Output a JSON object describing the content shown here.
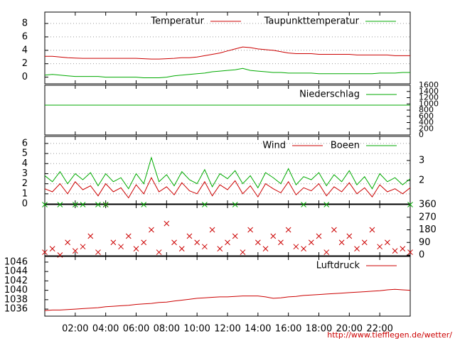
{
  "footer": "http://www.tiefflegen.de/wetter/",
  "chart_data": [
    {
      "type": "line",
      "yaxis": "left",
      "grid": true,
      "x": [
        0,
        0.5,
        1,
        1.5,
        2,
        2.5,
        3,
        3.5,
        4,
        4.5,
        5,
        5.5,
        6,
        6.5,
        7,
        7.5,
        8,
        8.5,
        9,
        9.5,
        10,
        10.5,
        11,
        11.5,
        12,
        12.5,
        13,
        13.5,
        14,
        14.5,
        15,
        15.5,
        16,
        16.5,
        17,
        17.5,
        18,
        18.5,
        19,
        19.5,
        20,
        20.5,
        21,
        21.5,
        22,
        22.5,
        23,
        23.5,
        24
      ],
      "xlim": [
        0,
        24
      ],
      "ylim": [
        -1,
        9.7
      ],
      "yticks": [
        0,
        2,
        4,
        6,
        8
      ],
      "series": [
        {
          "name": "Temperatur",
          "color": "#cc0000",
          "values": [
            3.1,
            3.1,
            3.0,
            2.9,
            2.85,
            2.8,
            2.8,
            2.8,
            2.8,
            2.8,
            2.8,
            2.8,
            2.8,
            2.75,
            2.7,
            2.7,
            2.75,
            2.8,
            2.9,
            2.9,
            3.0,
            3.2,
            3.4,
            3.6,
            3.9,
            4.2,
            4.5,
            4.4,
            4.2,
            4.1,
            4.0,
            3.8,
            3.6,
            3.5,
            3.5,
            3.5,
            3.4,
            3.4,
            3.4,
            3.4,
            3.4,
            3.3,
            3.3,
            3.3,
            3.3,
            3.3,
            3.2,
            3.2,
            3.2
          ]
        },
        {
          "name": "Taupunkttemperatur",
          "color": "#00aa00",
          "values": [
            0.3,
            0.4,
            0.3,
            0.2,
            0.1,
            0.1,
            0.1,
            0.1,
            0.0,
            0.0,
            0.0,
            0.0,
            0.0,
            -0.1,
            -0.1,
            -0.1,
            0.0,
            0.2,
            0.3,
            0.4,
            0.5,
            0.6,
            0.8,
            0.9,
            1.0,
            1.1,
            1.3,
            1.0,
            0.9,
            0.8,
            0.7,
            0.7,
            0.6,
            0.6,
            0.6,
            0.6,
            0.5,
            0.5,
            0.5,
            0.5,
            0.5,
            0.5,
            0.5,
            0.5,
            0.6,
            0.6,
            0.6,
            0.7,
            0.7
          ]
        }
      ]
    },
    {
      "type": "line",
      "yaxis": "right",
      "grid": false,
      "x": [
        0,
        24
      ],
      "xlim": [
        0,
        24
      ],
      "ylim": [
        0,
        1600
      ],
      "yticks": [
        0,
        200,
        400,
        600,
        800,
        1000,
        1200,
        1400,
        1600
      ],
      "series": [
        {
          "name": "Niederschlag",
          "color": "#00aa00",
          "values": [
            960,
            960
          ]
        }
      ]
    },
    {
      "type": "line",
      "yaxis": "left",
      "grid": true,
      "x": [
        0,
        0.5,
        1,
        1.5,
        2,
        2.5,
        3,
        3.5,
        4,
        4.5,
        5,
        5.5,
        6,
        6.5,
        7,
        7.5,
        8,
        8.5,
        9,
        9.5,
        10,
        10.5,
        11,
        11.5,
        12,
        12.5,
        13,
        13.5,
        14,
        14.5,
        15,
        15.5,
        16,
        16.5,
        17,
        17.5,
        18,
        18.5,
        19,
        19.5,
        20,
        20.5,
        21,
        21.5,
        22,
        22.5,
        23,
        23.5,
        24
      ],
      "xlim": [
        0,
        24
      ],
      "ylim": [
        0,
        6.7
      ],
      "yticks": [
        0,
        1,
        2,
        3,
        4,
        5,
        6
      ],
      "y2lim": [
        0.82,
        4.21
      ],
      "y2ticks": [
        2,
        3
      ],
      "series": [
        {
          "name": "Wind",
          "color": "#cc0000",
          "values": [
            1.5,
            1.2,
            2.0,
            1.0,
            2.2,
            1.4,
            1.8,
            0.8,
            2.0,
            1.2,
            1.6,
            0.6,
            1.9,
            1.0,
            2.6,
            1.2,
            1.7,
            0.9,
            2.1,
            1.3,
            1.0,
            2.2,
            0.8,
            1.9,
            1.4,
            2.3,
            1.0,
            1.8,
            0.7,
            2.0,
            1.5,
            1.1,
            2.2,
            0.9,
            1.6,
            1.3,
            2.0,
            0.8,
            1.7,
            1.2,
            2.1,
            1.0,
            1.6,
            0.7,
            1.9,
            1.2,
            1.5,
            1.0,
            1.6
          ]
        },
        {
          "name": "Boeen",
          "color": "#00aa00",
          "values": [
            2.8,
            2.2,
            3.2,
            2.0,
            3.0,
            2.4,
            3.1,
            1.8,
            3.0,
            2.2,
            2.6,
            1.5,
            3.0,
            2.0,
            4.6,
            2.2,
            2.9,
            1.8,
            3.2,
            2.4,
            2.0,
            3.4,
            1.7,
            3.0,
            2.5,
            3.3,
            2.0,
            2.8,
            1.6,
            3.1,
            2.6,
            2.0,
            3.5,
            1.9,
            2.7,
            2.4,
            3.1,
            1.8,
            2.9,
            2.2,
            3.3,
            1.9,
            2.7,
            1.5,
            3.0,
            2.2,
            2.6,
            1.9,
            2.5
          ]
        }
      ]
    },
    {
      "type": "scatter",
      "yaxis": "right",
      "grid": false,
      "x": [
        0,
        0.5,
        1,
        1.5,
        2,
        2.5,
        3,
        3.5,
        4,
        4.5,
        5,
        5.5,
        6,
        6.5,
        7,
        7.5,
        8,
        8.5,
        9,
        9.5,
        10,
        10.5,
        11,
        11.5,
        12,
        12.5,
        13,
        13.5,
        14,
        14.5,
        15,
        15.5,
        16,
        16.5,
        17,
        17.5,
        18,
        18.5,
        19,
        19.5,
        20,
        20.5,
        21,
        21.5,
        22,
        22.5,
        23,
        23.5,
        24
      ],
      "xlim": [
        0,
        24
      ],
      "ylim": [
        -5,
        360
      ],
      "yticks": [
        0,
        90,
        180,
        270,
        360
      ],
      "series": [
        {
          "color": "#cc0000",
          "values": [
            20,
            45,
            0,
            90,
            30,
            60,
            135,
            20,
            360,
            90,
            60,
            135,
            45,
            90,
            180,
            20,
            225,
            90,
            45,
            135,
            90,
            60,
            180,
            45,
            90,
            135,
            20,
            180,
            90,
            45,
            135,
            90,
            180,
            60,
            45,
            90,
            135,
            20,
            180,
            90,
            135,
            45,
            90,
            180,
            60,
            90,
            30,
            45,
            20
          ]
        },
        {
          "color": "#00aa00",
          "values": [
            360,
            null,
            360,
            null,
            360,
            360,
            null,
            360,
            360,
            null,
            null,
            null,
            null,
            360,
            null,
            null,
            null,
            null,
            null,
            null,
            null,
            360,
            null,
            null,
            null,
            360,
            null,
            null,
            null,
            null,
            null,
            null,
            null,
            null,
            360,
            null,
            null,
            360,
            null,
            null,
            null,
            null,
            null,
            null,
            null,
            null,
            null,
            null,
            360
          ]
        }
      ]
    },
    {
      "type": "line",
      "yaxis": "left",
      "grid": false,
      "x": [
        0,
        0.5,
        1,
        1.5,
        2,
        2.5,
        3,
        3.5,
        4,
        4.5,
        5,
        5.5,
        6,
        6.5,
        7,
        7.5,
        8,
        8.5,
        9,
        9.5,
        10,
        10.5,
        11,
        11.5,
        12,
        12.5,
        13,
        13.5,
        14,
        14.5,
        15,
        15.5,
        16,
        16.5,
        17,
        17.5,
        18,
        18.5,
        19,
        19.5,
        20,
        20.5,
        21,
        21.5,
        22,
        22.5,
        23,
        23.5,
        24
      ],
      "xlim": [
        0,
        24
      ],
      "ylim": [
        1034.5,
        1047.2
      ],
      "yticks": [
        1036,
        1038,
        1040,
        1042,
        1044,
        1046
      ],
      "xticks": [
        {
          "value": 2,
          "label": "02:00"
        },
        {
          "value": 4,
          "label": "04:00"
        },
        {
          "value": 6,
          "label": "06:00"
        },
        {
          "value": 8,
          "label": "08:00"
        },
        {
          "value": 10,
          "label": "10:00"
        },
        {
          "value": 12,
          "label": "12:00"
        },
        {
          "value": 14,
          "label": "14:00"
        },
        {
          "value": 16,
          "label": "16:00"
        },
        {
          "value": 18,
          "label": "18:00"
        },
        {
          "value": 20,
          "label": "20:00"
        },
        {
          "value": 22,
          "label": "22:00"
        }
      ],
      "series": [
        {
          "name": "Luftdruck",
          "color": "#cc0000",
          "values": [
            1035.7,
            1035.8,
            1035.8,
            1035.9,
            1036.0,
            1036.1,
            1036.2,
            1036.3,
            1036.5,
            1036.6,
            1036.7,
            1036.8,
            1037.0,
            1037.1,
            1037.2,
            1037.4,
            1037.5,
            1037.7,
            1037.9,
            1038.1,
            1038.3,
            1038.4,
            1038.5,
            1038.6,
            1038.6,
            1038.7,
            1038.8,
            1038.8,
            1038.8,
            1038.6,
            1038.3,
            1038.4,
            1038.6,
            1038.7,
            1038.9,
            1039.0,
            1039.1,
            1039.2,
            1039.3,
            1039.4,
            1039.5,
            1039.6,
            1039.7,
            1039.8,
            1039.9,
            1040.1,
            1040.2,
            1040.1,
            1040.0
          ]
        }
      ]
    }
  ]
}
